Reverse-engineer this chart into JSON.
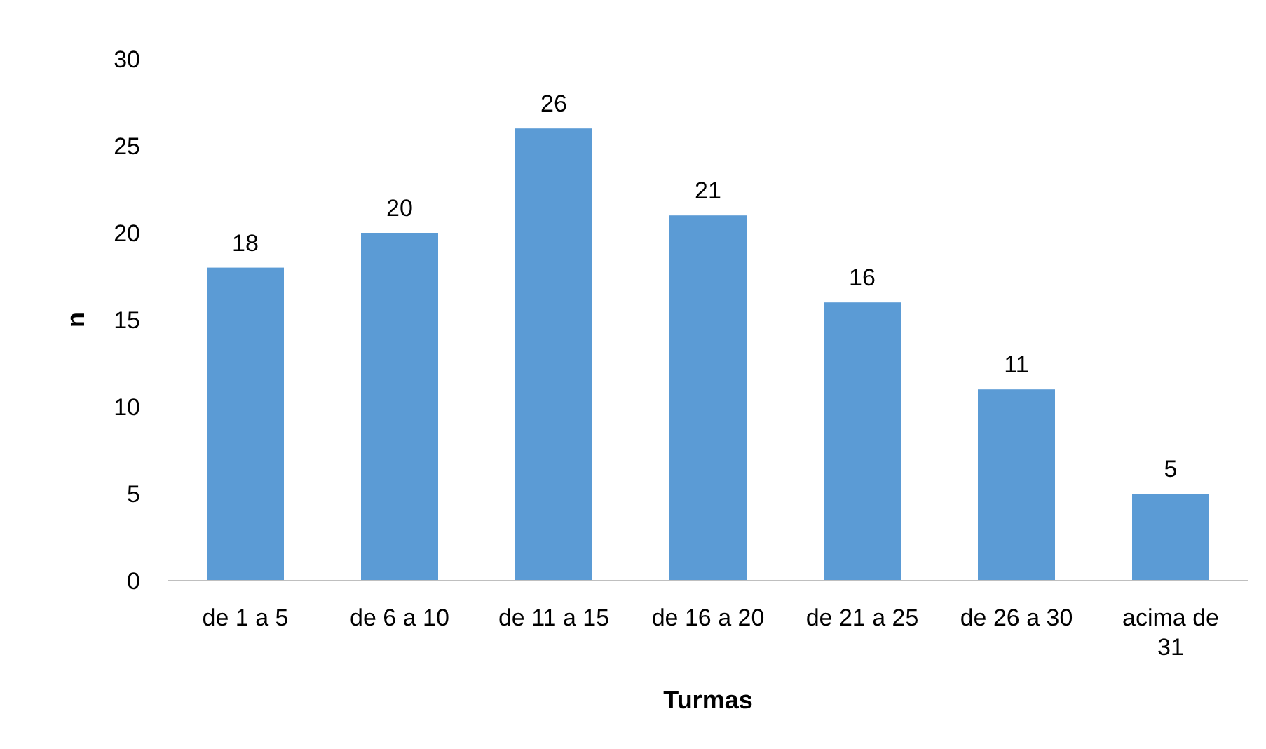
{
  "chart_data": {
    "type": "bar",
    "xlabel": "Turmas",
    "ylabel": "n",
    "categories": [
      "de 1 a 5",
      "de 6 a 10",
      "de 11 a 15",
      "de 16 a 20",
      "de 21 a 25",
      "de 26 a 30",
      "acima de 31"
    ],
    "values": [
      18,
      20,
      26,
      21,
      16,
      11,
      5
    ],
    "color": "#5b9bd5",
    "ylim": [
      0,
      30
    ],
    "yticks": [
      0,
      5,
      10,
      15,
      20,
      25,
      30
    ],
    "grid": false,
    "data_labels": true
  }
}
